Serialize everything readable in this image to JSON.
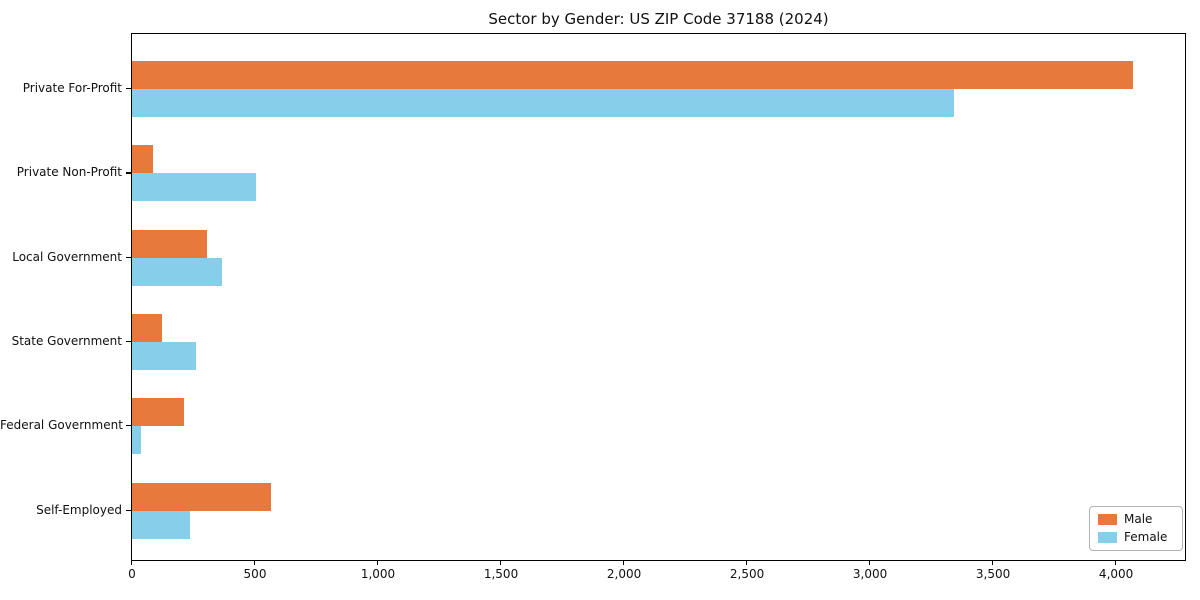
{
  "chart_data": {
    "type": "bar",
    "orientation": "horizontal",
    "title": "Sector by Gender: US ZIP Code 37188 (2024)",
    "categories": [
      "Private For-Profit",
      "Private Non-Profit",
      "Local Government",
      "State Government",
      "Federal Government",
      "Self-Employed"
    ],
    "series": [
      {
        "name": "Male",
        "color": "#e8793c",
        "values": [
          4070,
          85,
          305,
          120,
          210,
          565
        ]
      },
      {
        "name": "Female",
        "color": "#87ceeb",
        "values": [
          3340,
          505,
          365,
          260,
          35,
          235
        ]
      }
    ],
    "xlim": [
      0,
      4280
    ],
    "xticks": [
      0,
      500,
      1000,
      1500,
      2000,
      2500,
      3000,
      3500,
      4000
    ],
    "xtick_labels": [
      "0",
      "500",
      "1,000",
      "1,500",
      "2,000",
      "2,500",
      "3,000",
      "3,500",
      "4,000"
    ],
    "xlabel": "",
    "ylabel": "",
    "grid": false,
    "legend_position": "lower right",
    "axis_color": "#000000",
    "background_color": "#ffffff"
  }
}
